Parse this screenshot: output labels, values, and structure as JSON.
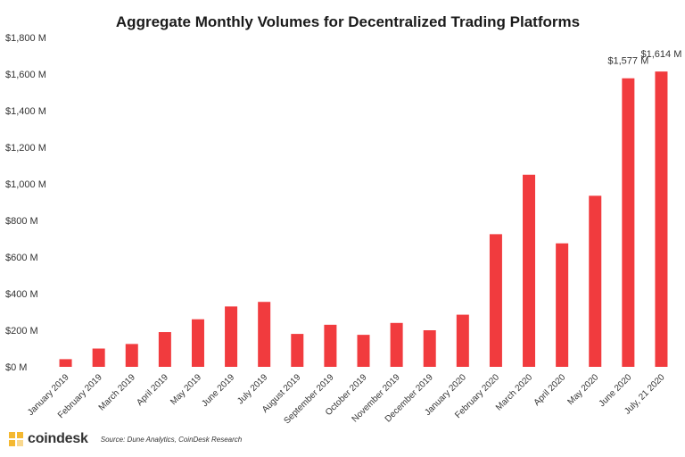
{
  "chart_data": {
    "type": "bar",
    "title": "Aggregate Monthly Volumes for Decentralized Trading Platforms",
    "xlabel": "",
    "ylabel": "",
    "ylim": [
      0,
      1800
    ],
    "yticks": [
      "$0 M",
      "$200 M",
      "$400 M",
      "$600 M",
      "$800 M",
      "$1,000 M",
      "$1,200 M",
      "$1,400 M",
      "$1,600 M",
      "$1,800 M"
    ],
    "grid": false,
    "categories": [
      "January 2019",
      "February 2019",
      "March 2019",
      "April 2019",
      "May 2019",
      "June 2019",
      "July 2019",
      "August 2019",
      "September 2019",
      "October 2019",
      "November 2019",
      "December 2019",
      "January 2020",
      "February 2020",
      "March 2020",
      "April 2020",
      "May 2020",
      "June 2020",
      "July, 21 2020"
    ],
    "values": [
      42,
      100,
      125,
      190,
      260,
      330,
      355,
      180,
      230,
      175,
      240,
      200,
      285,
      725,
      1050,
      675,
      935,
      1577,
      1614
    ],
    "data_labels": [
      {
        "index": 17,
        "text": "$1,577 M"
      },
      {
        "index": 18,
        "text": "$1,614 M"
      }
    ],
    "bar_color": "#f13b3e"
  },
  "footer": {
    "brand": "coindesk",
    "brand_color": "#f4b831",
    "logo_icon": "coindesk-logo-icon",
    "source": "Source: Dune Analytics, CoinDesk Research"
  }
}
